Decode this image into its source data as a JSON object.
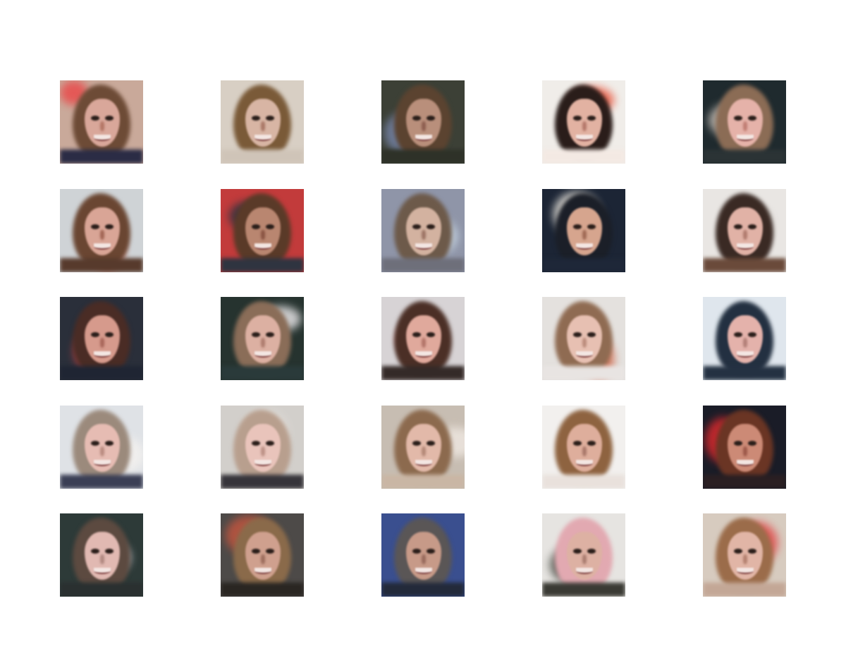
{
  "grid": {
    "rows": 5,
    "cols": 5
  },
  "tiles": [
    {
      "bg": "#c9a99a",
      "blob": "#e94b4b",
      "hair": "#6d4b36",
      "skin": "#d9a79a",
      "body": "#2b2c45",
      "nose": "#b37565"
    },
    {
      "bg": "#d8cfc4",
      "blob": "#6b5a4a",
      "hair": "#7a5a38",
      "skin": "#d8b5a4",
      "body": "#cfc4b8",
      "nose": "#a97766"
    },
    {
      "bg": "#3c4036",
      "blob": "#7583a6",
      "hair": "#5b4330",
      "skin": "#b98f7b",
      "body": "#2e3128",
      "nose": "#8d5e4f"
    },
    {
      "bg": "#f0ede9",
      "blob": "#e8573f",
      "hair": "#2a1d1a",
      "skin": "#e2b2a2",
      "body": "#f3e9e3",
      "nose": "#b4786a"
    },
    {
      "bg": "#1f2a2e",
      "blob": "#c6bfb8",
      "hair": "#8b6c55",
      "skin": "#e5b2a9",
      "body": "#2b3335",
      "nose": "#c07d73"
    },
    {
      "bg": "#cfd3d6",
      "blob": "#e25d4b",
      "hair": "#6a4632",
      "skin": "#d9a596",
      "body": "#573a2c",
      "nose": "#a26655"
    },
    {
      "bg": "#c23b3b",
      "blob": "#2b3440",
      "hair": "#5a3a28",
      "skin": "#b98670",
      "body": "#2f3440",
      "nose": "#8a5443"
    },
    {
      "bg": "#8f95a8",
      "blob": "#c9d8e6",
      "hair": "#6d5a4a",
      "skin": "#d3b2a0",
      "body": "#6e6f7a",
      "nose": "#9d7565"
    },
    {
      "bg": "#1c2535",
      "blob": "#ede9e0",
      "hair": "#1b1f28",
      "skin": "#d6a58e",
      "body": "#1e2738",
      "nose": "#a06a55"
    },
    {
      "bg": "#e9e6e3",
      "blob": "#b7b2ad",
      "hair": "#3a2a24",
      "skin": "#e1b2a6",
      "body": "#6a4a3a",
      "nose": "#b07b6e"
    },
    {
      "bg": "#2a2f3a",
      "blob": "#d64848",
      "hair": "#4a2c25",
      "skin": "#d69a8c",
      "body": "#1f2533",
      "nose": "#a8665a"
    },
    {
      "bg": "#26332f",
      "blob": "#e6e4e6",
      "hair": "#8a6d58",
      "skin": "#dcb0a2",
      "body": "#2a3a3a",
      "nose": "#ae7c6e"
    },
    {
      "bg": "#d7d3d5",
      "blob": "#e24b45",
      "hair": "#4b2f26",
      "skin": "#e0a99c",
      "body": "#342a28",
      "nose": "#b27468"
    },
    {
      "bg": "#e4e1de",
      "blob": "#d16a4d",
      "hair": "#8f6b52",
      "skin": "#e7c0b2",
      "body": "#e8e4e2",
      "nose": "#bb8c7c"
    },
    {
      "bg": "#dfe6ed",
      "blob": "#4d6a5d",
      "hair": "#233041",
      "skin": "#e4b2ab",
      "body": "#243142",
      "nose": "#b27f77"
    },
    {
      "bg": "#dfe2e6",
      "blob": "#f3f1ef",
      "hair": "#9b8a7c",
      "skin": "#e6bcb3",
      "body": "#3b3f55",
      "nose": "#b98b80"
    },
    {
      "bg": "#d2cfcb",
      "blob": "#ece9e4",
      "hair": "#b89f8e",
      "skin": "#e9c4bb",
      "body": "#36343a",
      "nose": "#bc9186"
    },
    {
      "bg": "#c7bdb2",
      "blob": "#ede6df",
      "hair": "#8c6a4e",
      "skin": "#e2b9a9",
      "body": "#c9b6a4",
      "nose": "#b38877"
    },
    {
      "bg": "#f2f0ee",
      "blob": "#e6d6c9",
      "hair": "#8e6340",
      "skin": "#deae9c",
      "body": "#e9e1dc",
      "nose": "#a9786a"
    },
    {
      "bg": "#1a1c27",
      "blob": "#d92a2e",
      "hair": "#6a3524",
      "skin": "#cc8a76",
      "body": "#2a1f22",
      "nose": "#9c5849"
    },
    {
      "bg": "#2d3a38",
      "blob": "#d9dbe4",
      "hair": "#5c4a40",
      "skin": "#e1b9b2",
      "body": "#2a3030",
      "nose": "#b08880"
    },
    {
      "bg": "#4d4a48",
      "blob": "#c0553f",
      "hair": "#8a6a4a",
      "skin": "#cfa08e",
      "body": "#2a2622",
      "nose": "#9d6d5d"
    },
    {
      "bg": "#3a4f8f",
      "blob": "#1d2432",
      "hair": "#5a5656",
      "skin": "#c79a88",
      "body": "#232a3a",
      "nose": "#986a5c"
    },
    {
      "bg": "#e6e4e1",
      "blob": "#4a4c44",
      "hair": "#e2a9b1",
      "skin": "#ddb1a3",
      "body": "#3a3a34",
      "nose": "#aa7d70"
    },
    {
      "bg": "#d7cbbf",
      "blob": "#e14a4a",
      "hair": "#9b6c4a",
      "skin": "#e1b5a6",
      "body": "#c3a796",
      "nose": "#b3806f"
    }
  ]
}
